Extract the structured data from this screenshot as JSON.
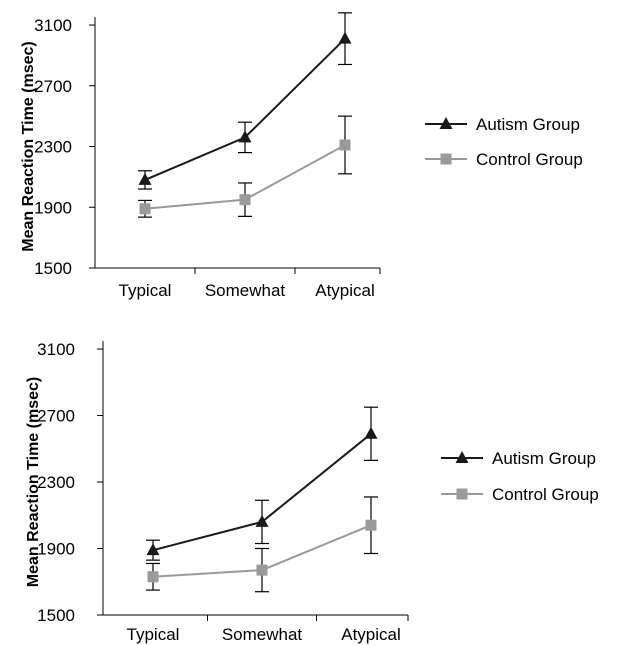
{
  "chart_data": [
    {
      "type": "line",
      "title": "",
      "xlabel": "",
      "ylabel": "Mean Reaction Time (msec)",
      "categories": [
        "Typical",
        "Somewhat",
        "Atypical"
      ],
      "ylim": [
        1500,
        3100
      ],
      "yticks": [
        1500,
        1900,
        2300,
        2700,
        3100
      ],
      "grid": false,
      "legend_position": "right",
      "series": [
        {
          "name": "Autism Group",
          "marker": "triangle",
          "color": "#1a1a1a",
          "values": [
            2080,
            2360,
            3010
          ],
          "error": [
            60,
            100,
            170
          ]
        },
        {
          "name": "Control Group",
          "marker": "square",
          "color": "#9a9a9a",
          "values": [
            1890,
            1950,
            2310
          ],
          "error": [
            55,
            110,
            190
          ]
        }
      ]
    },
    {
      "type": "line",
      "title": "",
      "xlabel": "",
      "ylabel": "Mean Reaction Time (msec)",
      "categories": [
        "Typical",
        "Somewhat",
        "Atypical"
      ],
      "ylim": [
        1500,
        3100
      ],
      "yticks": [
        1500,
        1900,
        2300,
        2700,
        3100
      ],
      "grid": false,
      "legend_position": "right",
      "series": [
        {
          "name": "Autism Group",
          "marker": "triangle",
          "color": "#1a1a1a",
          "values": [
            1890,
            2060,
            2590
          ],
          "error": [
            60,
            130,
            160
          ]
        },
        {
          "name": "Control Group",
          "marker": "square",
          "color": "#9a9a9a",
          "values": [
            1730,
            1770,
            2040
          ],
          "error": [
            80,
            130,
            170
          ]
        }
      ]
    }
  ]
}
